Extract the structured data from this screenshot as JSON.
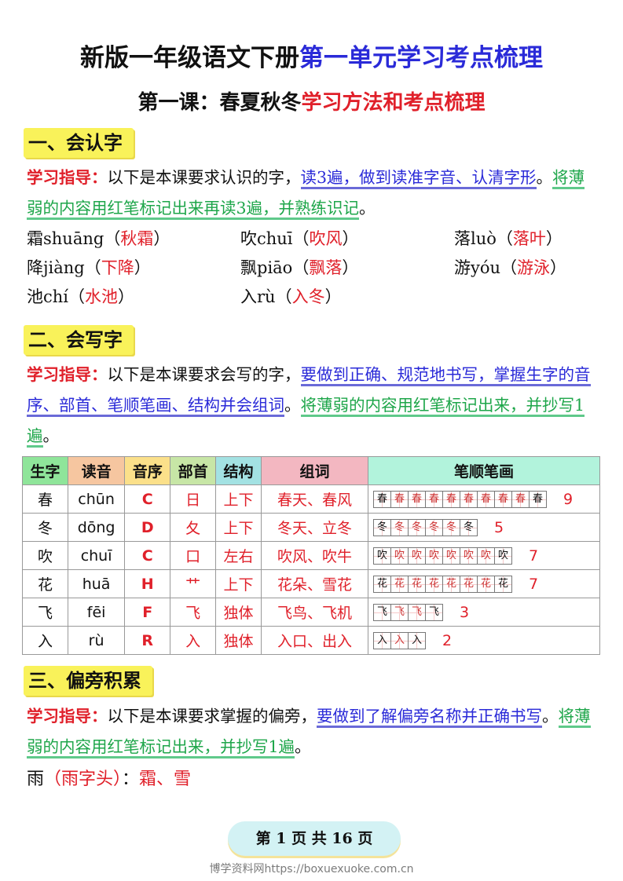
{
  "title": {
    "black": "新版一年级语文下册",
    "blue": "第一单元学习考点梳理"
  },
  "subtitle": {
    "black": "第一课：春夏秋冬",
    "red": "学习方法和考点梳理"
  },
  "sections": [
    {
      "heading": "一、会认字",
      "guide_label": "学习指导：",
      "guide_text": "以下是本课要求认识的字，",
      "blue_text": "读3遍，做到读准字音、认清字形",
      "sep": "。",
      "green_text": "将薄弱的内容用红笔标记出来再读3遍，并熟练识记",
      "end": "。",
      "chars": [
        {
          "c": "霜shuāng",
          "w": "秋霜"
        },
        {
          "c": "吹chuī",
          "w": "吹风"
        },
        {
          "c": "落luò",
          "w": "落叶"
        },
        {
          "c": "降jiàng",
          "w": "下降"
        },
        {
          "c": "飘piāo",
          "w": "飘落"
        },
        {
          "c": "游yóu",
          "w": "游泳"
        },
        {
          "c": "池chí",
          "w": "水池"
        },
        {
          "c": "入rù",
          "w": "入冬"
        }
      ]
    },
    {
      "heading": "二、会写字",
      "guide_label": "学习指导：",
      "guide_text": "以下是本课要求会写的字，",
      "blue_text": "要做到正确、规范地书写，掌握生字的音序、部首、笔顺笔画、结构并会组词",
      "sep": "。",
      "green_text": "将薄弱的内容用红笔标记出来，并抄写1遍",
      "end": "。"
    },
    {
      "heading": "三、偏旁积累",
      "guide_label": "学习指导：",
      "guide_text": "以下是本课要求掌握的偏旁，",
      "blue_text": "要做到了解偏旁名称并正确书写",
      "sep": "。",
      "green_text": "将薄弱的内容用红笔标记出来，并抄写1遍",
      "end": "。",
      "radical": {
        "glyph": "雨",
        "name": "（雨字头）",
        "colon": "：",
        "chars": "霜、雪"
      }
    }
  ],
  "table": {
    "headers": [
      "生字",
      "读音",
      "音序",
      "部首",
      "结构",
      "组词",
      "笔顺笔画"
    ],
    "header_colors": [
      "#8fe59a",
      "#f6c6a0",
      "#fbe08a",
      "#c7e6a6",
      "#a3e2e3",
      "#f3b7c1",
      "#b2f3dc"
    ],
    "rows": [
      {
        "char": "春",
        "pinyin": "chūn",
        "letter": "C",
        "radical": "日",
        "structure": "上下",
        "words": "春天、春风",
        "strokes": 9
      },
      {
        "char": "冬",
        "pinyin": "dōng",
        "letter": "D",
        "radical": "夂",
        "structure": "上下",
        "words": "冬天、立冬",
        "strokes": 5
      },
      {
        "char": "吹",
        "pinyin": "chuī",
        "letter": "C",
        "radical": "口",
        "structure": "左右",
        "words": "吹风、吹牛",
        "strokes": 7
      },
      {
        "char": "花",
        "pinyin": "huā",
        "letter": "H",
        "radical": "艹",
        "structure": "上下",
        "words": "花朵、雪花",
        "strokes": 7
      },
      {
        "char": "飞",
        "pinyin": "fēi",
        "letter": "F",
        "radical": "飞",
        "structure": "独体",
        "words": "飞鸟、飞机",
        "strokes": 3
      },
      {
        "char": "入",
        "pinyin": "rù",
        "letter": "R",
        "radical": "入",
        "structure": "独体",
        "words": "入口、出入",
        "strokes": 2
      }
    ]
  },
  "pager": "第 1 页 共 16 页",
  "watermark": "博学资料网https://boxuexuoke.com.cn"
}
